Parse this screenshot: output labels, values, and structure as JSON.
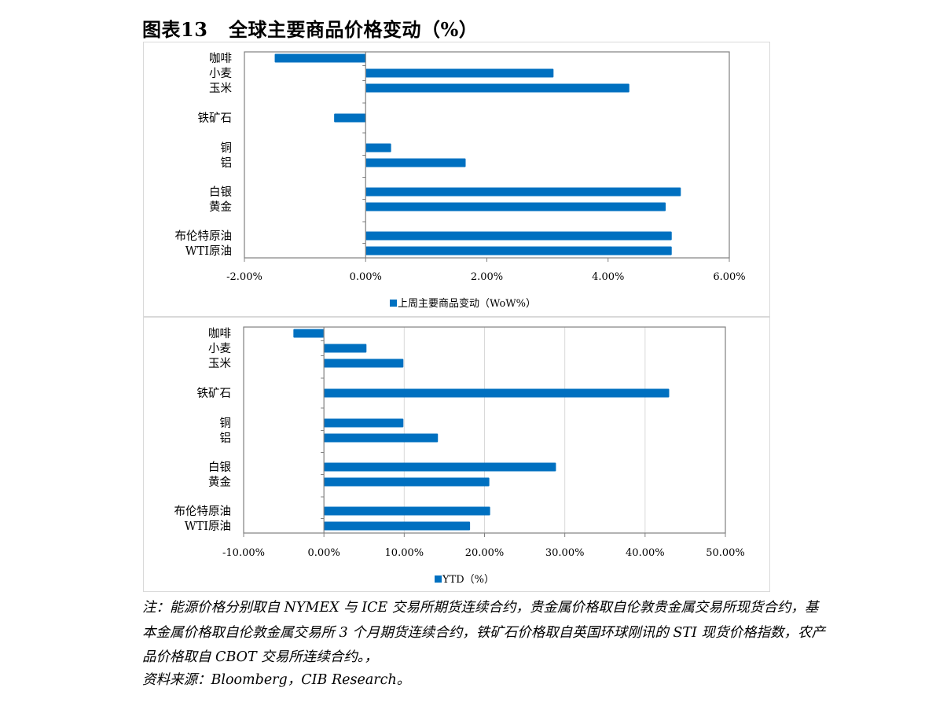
{
  "figure": {
    "title": "图表13   全球主要商品价格变动（%）",
    "note": "注：能源价格分别取自 NYMEX 与 ICE 交易所期货连续合约，贵金属价格取自伦敦贵金属交易所现货合约，基本金属价格取自伦敦金属交易所 3 个月期货连续合约，铁矿石价格取自英国环球刚讯的 STI 现货价格指数，农产品价格取自 CBOT 交易所连续合约。，",
    "source": "资料来源：Bloomberg，CIB Research。"
  },
  "colors": {
    "bar": "#0070C0",
    "axis": "#808080",
    "border": "#d9d9d9",
    "grid": "#d9d9d9"
  },
  "chart_data": [
    {
      "type": "bar",
      "orientation": "horizontal",
      "categories": [
        "咖啡",
        "小麦",
        "玉米",
        "铁矿石",
        "铜",
        "铝",
        "白银",
        "黄金",
        "布伦特原油",
        "WTI原油"
      ],
      "series": [
        {
          "name": "上周主要商品变动（WoW%）",
          "values": [
            -1.5,
            3.1,
            4.35,
            -0.52,
            0.42,
            1.65,
            5.2,
            4.95,
            5.05,
            5.05
          ]
        }
      ],
      "xlim": [
        -2,
        6
      ],
      "xticks": [
        -2,
        0,
        2,
        4,
        6
      ],
      "xtick_labels": [
        "-2.00%",
        "0.00%",
        "2.00%",
        "4.00%",
        "6.00%"
      ],
      "xlabel": "",
      "ylabel": "",
      "grid": false,
      "legend": "bottom"
    },
    {
      "type": "bar",
      "orientation": "horizontal",
      "categories": [
        "咖啡",
        "小麦",
        "玉米",
        "铁矿石",
        "铜",
        "铝",
        "白银",
        "黄金",
        "布伦特原油",
        "WTI原油"
      ],
      "series": [
        {
          "name": "YTD（%）",
          "values": [
            -3.8,
            5.3,
            9.9,
            43.0,
            9.9,
            14.2,
            28.9,
            20.6,
            20.7,
            18.2
          ]
        }
      ],
      "xlim": [
        -10,
        50
      ],
      "xticks": [
        -10,
        0,
        10,
        20,
        30,
        40,
        50
      ],
      "xtick_labels": [
        "-10.00%",
        "0.00%",
        "10.00%",
        "20.00%",
        "30.00%",
        "40.00%",
        "50.00%"
      ],
      "xlabel": "",
      "ylabel": "",
      "grid": true,
      "legend": "bottom"
    }
  ]
}
